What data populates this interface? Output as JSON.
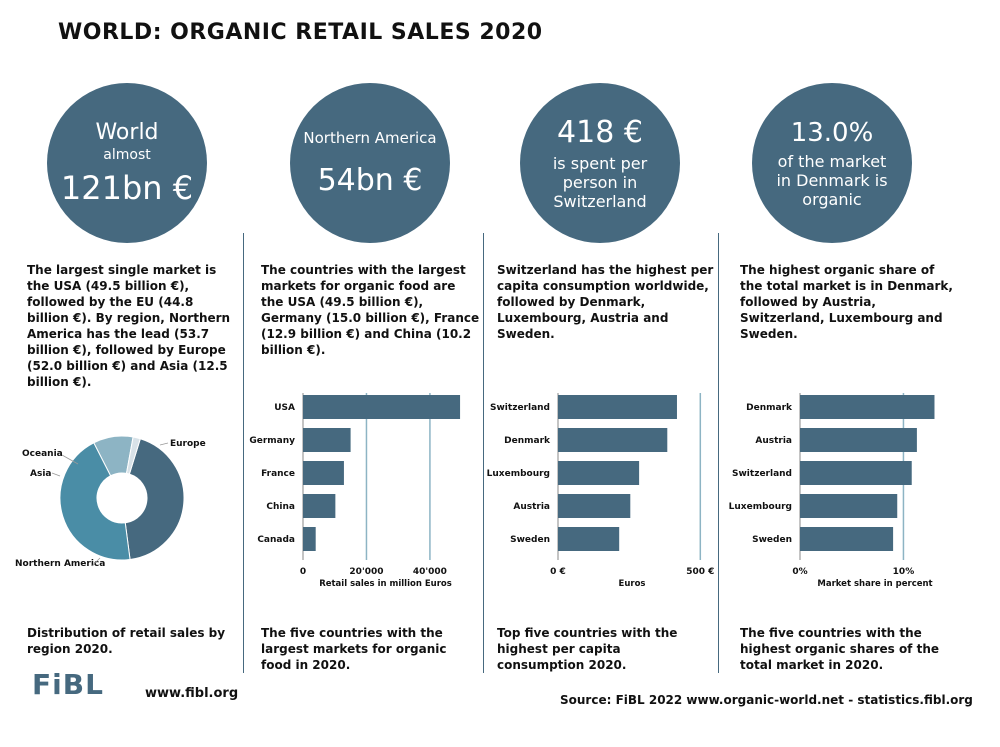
{
  "title": "WORLD: ORGANIC RETAIL SALES  2020",
  "colors": {
    "primary": "#46697f",
    "donut_light": "#8db4c4",
    "donut_mid": "#4a8da6",
    "donut_pale": "#d8e2e8"
  },
  "circles": [
    {
      "line1": "World",
      "line2": "almost",
      "line3": "121bn €"
    },
    {
      "line1": "Northern America",
      "line2": "54bn €"
    },
    {
      "line1": "418 €",
      "line2": "is spent per",
      "line3": "person in",
      "line4": "Switzerland"
    },
    {
      "line1": "13.0%",
      "line2": "of the market",
      "line3": "in Denmark is",
      "line4": "organic"
    }
  ],
  "texts": [
    "The largest single market is the USA (49.5 billion €), followed by the EU (44.8 billion €). By region, Northern America has the lead (53.7 billion €), followed by Europe (52.0 billion €) and Asia (12.5 billion €).",
    "The countries with the largest markets for organic food are the USA (49.5 billion €), Germany (15.0 billion €), France (12.9 billion €) and China (10.2 billion €).",
    "Switzerland has the highest per capita consumption worldwide, followed by Denmark, Luxembourg, Austria and Sweden.",
    "The highest organic share of the total market is in Denmark, followed by Austria, Switzerland, Luxembourg and Sweden."
  ],
  "captions": [
    "Distribution of retail sales by region 2020.",
    "The five countries with the largest markets for organic food in 2020.",
    "Top five countries with the highest per capita consumption 2020.",
    "The five countries with the highest organic shares of the total market in 2020."
  ],
  "footer": {
    "logo": "FiBL",
    "url": "www.fibl.org",
    "source": "Source: FiBL 2022 www.organic-world.net - statistics.fibl.org"
  },
  "chart_data": [
    {
      "type": "pie",
      "categories": [
        "Europe",
        "Northern America",
        "Asia",
        "Oceania"
      ],
      "values": [
        52.0,
        53.7,
        12.5,
        2.3
      ],
      "legend": "labels-outside"
    },
    {
      "type": "bar",
      "orientation": "horizontal",
      "categories": [
        "USA",
        "Germany",
        "France",
        "China",
        "Canada"
      ],
      "values": [
        49500,
        15000,
        12900,
        10200,
        4000
      ],
      "xlabel": "Retail sales in million Euros",
      "xticks": [
        "0",
        "20'000",
        "40'000"
      ],
      "xtick_values": [
        0,
        20000,
        40000
      ],
      "xlim": [
        0,
        52000
      ],
      "grid": true
    },
    {
      "type": "bar",
      "orientation": "horizontal",
      "categories": [
        "Switzerland",
        "Denmark",
        "Luxembourg",
        "Austria",
        "Sweden"
      ],
      "values": [
        418,
        384,
        285,
        254,
        215
      ],
      "xlabel": "Euros",
      "xticks": [
        "0 €",
        "500 €"
      ],
      "xtick_values": [
        0,
        500
      ],
      "xlim": [
        0,
        520
      ],
      "grid": true
    },
    {
      "type": "bar",
      "orientation": "horizontal",
      "categories": [
        "Denmark",
        "Austria",
        "Switzerland",
        "Luxembourg",
        "Sweden"
      ],
      "values": [
        13.0,
        11.3,
        10.8,
        9.4,
        9.0
      ],
      "xlabel": "Market share in percent",
      "xticks": [
        "0%",
        "10%"
      ],
      "xtick_values": [
        0,
        10
      ],
      "xlim": [
        0,
        14.5
      ],
      "grid": true
    }
  ]
}
